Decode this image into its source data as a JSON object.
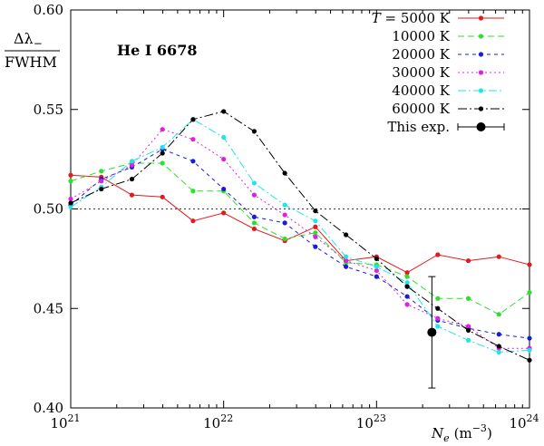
{
  "chart_data": {
    "type": "line",
    "annotation": "He I 6678",
    "ylabel": {
      "numerator": "Δλ",
      "numerator_sub": "−",
      "denominator": "FWHM"
    },
    "xlabel": {
      "symbol": "N",
      "subscript": "e",
      "units_pre": "(m",
      "units_exp": "−3",
      "units_post": ")"
    },
    "x_scale": "log",
    "xlim": [
      1e+21,
      1e+24
    ],
    "ylim": [
      0.4,
      0.6
    ],
    "x_ticks": [
      {
        "base": "10",
        "exp": "21",
        "value": 1e+21
      },
      {
        "base": "10",
        "exp": "22",
        "value": 1e+22
      },
      {
        "base": "10",
        "exp": "23",
        "value": 1e+23
      },
      {
        "base": "10",
        "exp": "24",
        "value": 1e+24
      }
    ],
    "y_ticks": [
      {
        "label": "0.40",
        "value": 0.4
      },
      {
        "label": "0.45",
        "value": 0.45
      },
      {
        "label": "0.50",
        "value": 0.5
      },
      {
        "label": "0.55",
        "value": 0.55
      },
      {
        "label": "0.60",
        "value": 0.6
      }
    ],
    "reference_line": {
      "y": 0.5,
      "style": "dotted"
    },
    "x": [
      1e+21,
      1.585e+21,
      2.512e+21,
      3.981e+21,
      6.31e+21,
      1e+22,
      1.585e+22,
      2.512e+22,
      3.981e+22,
      6.31e+22,
      1e+23,
      1.585e+23,
      2.512e+23,
      3.981e+23,
      6.31e+23,
      1e+24
    ],
    "series": [
      {
        "name": "T = 5000 K",
        "italic_symbol": "T",
        "rest": " = 5000 K",
        "color": "#e31a1c",
        "dash": "",
        "values": [
          0.517,
          0.516,
          0.507,
          0.506,
          0.494,
          0.498,
          0.49,
          0.484,
          0.491,
          0.474,
          0.476,
          0.468,
          0.477,
          0.474,
          0.476,
          0.472
        ]
      },
      {
        "name": "10000 K",
        "color": "#2ee02e",
        "dash": "7,4",
        "values": [
          0.514,
          0.519,
          0.523,
          0.523,
          0.509,
          0.509,
          0.493,
          0.485,
          0.488,
          0.473,
          0.472,
          0.466,
          0.455,
          0.455,
          0.447,
          0.458
        ]
      },
      {
        "name": "20000 K",
        "color": "#1b1bd6",
        "dash": "4,4",
        "values": [
          0.502,
          0.515,
          0.521,
          0.53,
          0.524,
          0.51,
          0.496,
          0.493,
          0.481,
          0.471,
          0.466,
          0.456,
          0.444,
          0.44,
          0.437,
          0.435
        ]
      },
      {
        "name": "30000 K",
        "color": "#e020e0",
        "dash": "2,3",
        "values": [
          0.505,
          0.514,
          0.522,
          0.54,
          0.535,
          0.525,
          0.507,
          0.497,
          0.486,
          0.474,
          0.469,
          0.452,
          0.445,
          0.441,
          0.43,
          0.43
        ]
      },
      {
        "name": "40000 K",
        "color": "#1ee6e6",
        "dash": "9,3,2,3",
        "values": [
          0.501,
          0.511,
          0.524,
          0.531,
          0.545,
          0.536,
          0.513,
          0.502,
          0.494,
          0.476,
          0.471,
          0.463,
          0.441,
          0.434,
          0.428,
          0.429
        ]
      },
      {
        "name": "60000 K",
        "color": "#000000",
        "dash": "10,3,2,3",
        "values": [
          0.503,
          0.51,
          0.515,
          0.528,
          0.545,
          0.549,
          0.539,
          0.518,
          0.499,
          0.487,
          0.475,
          0.461,
          0.45,
          0.439,
          0.431,
          0.424
        ]
      }
    ],
    "experiment": {
      "name": "This exp.",
      "x": 2.3e+23,
      "y": 0.438,
      "y_err_low": 0.41,
      "y_err_high": 0.466,
      "color": "#000000"
    },
    "legend_position": "top-right",
    "grid": false
  }
}
